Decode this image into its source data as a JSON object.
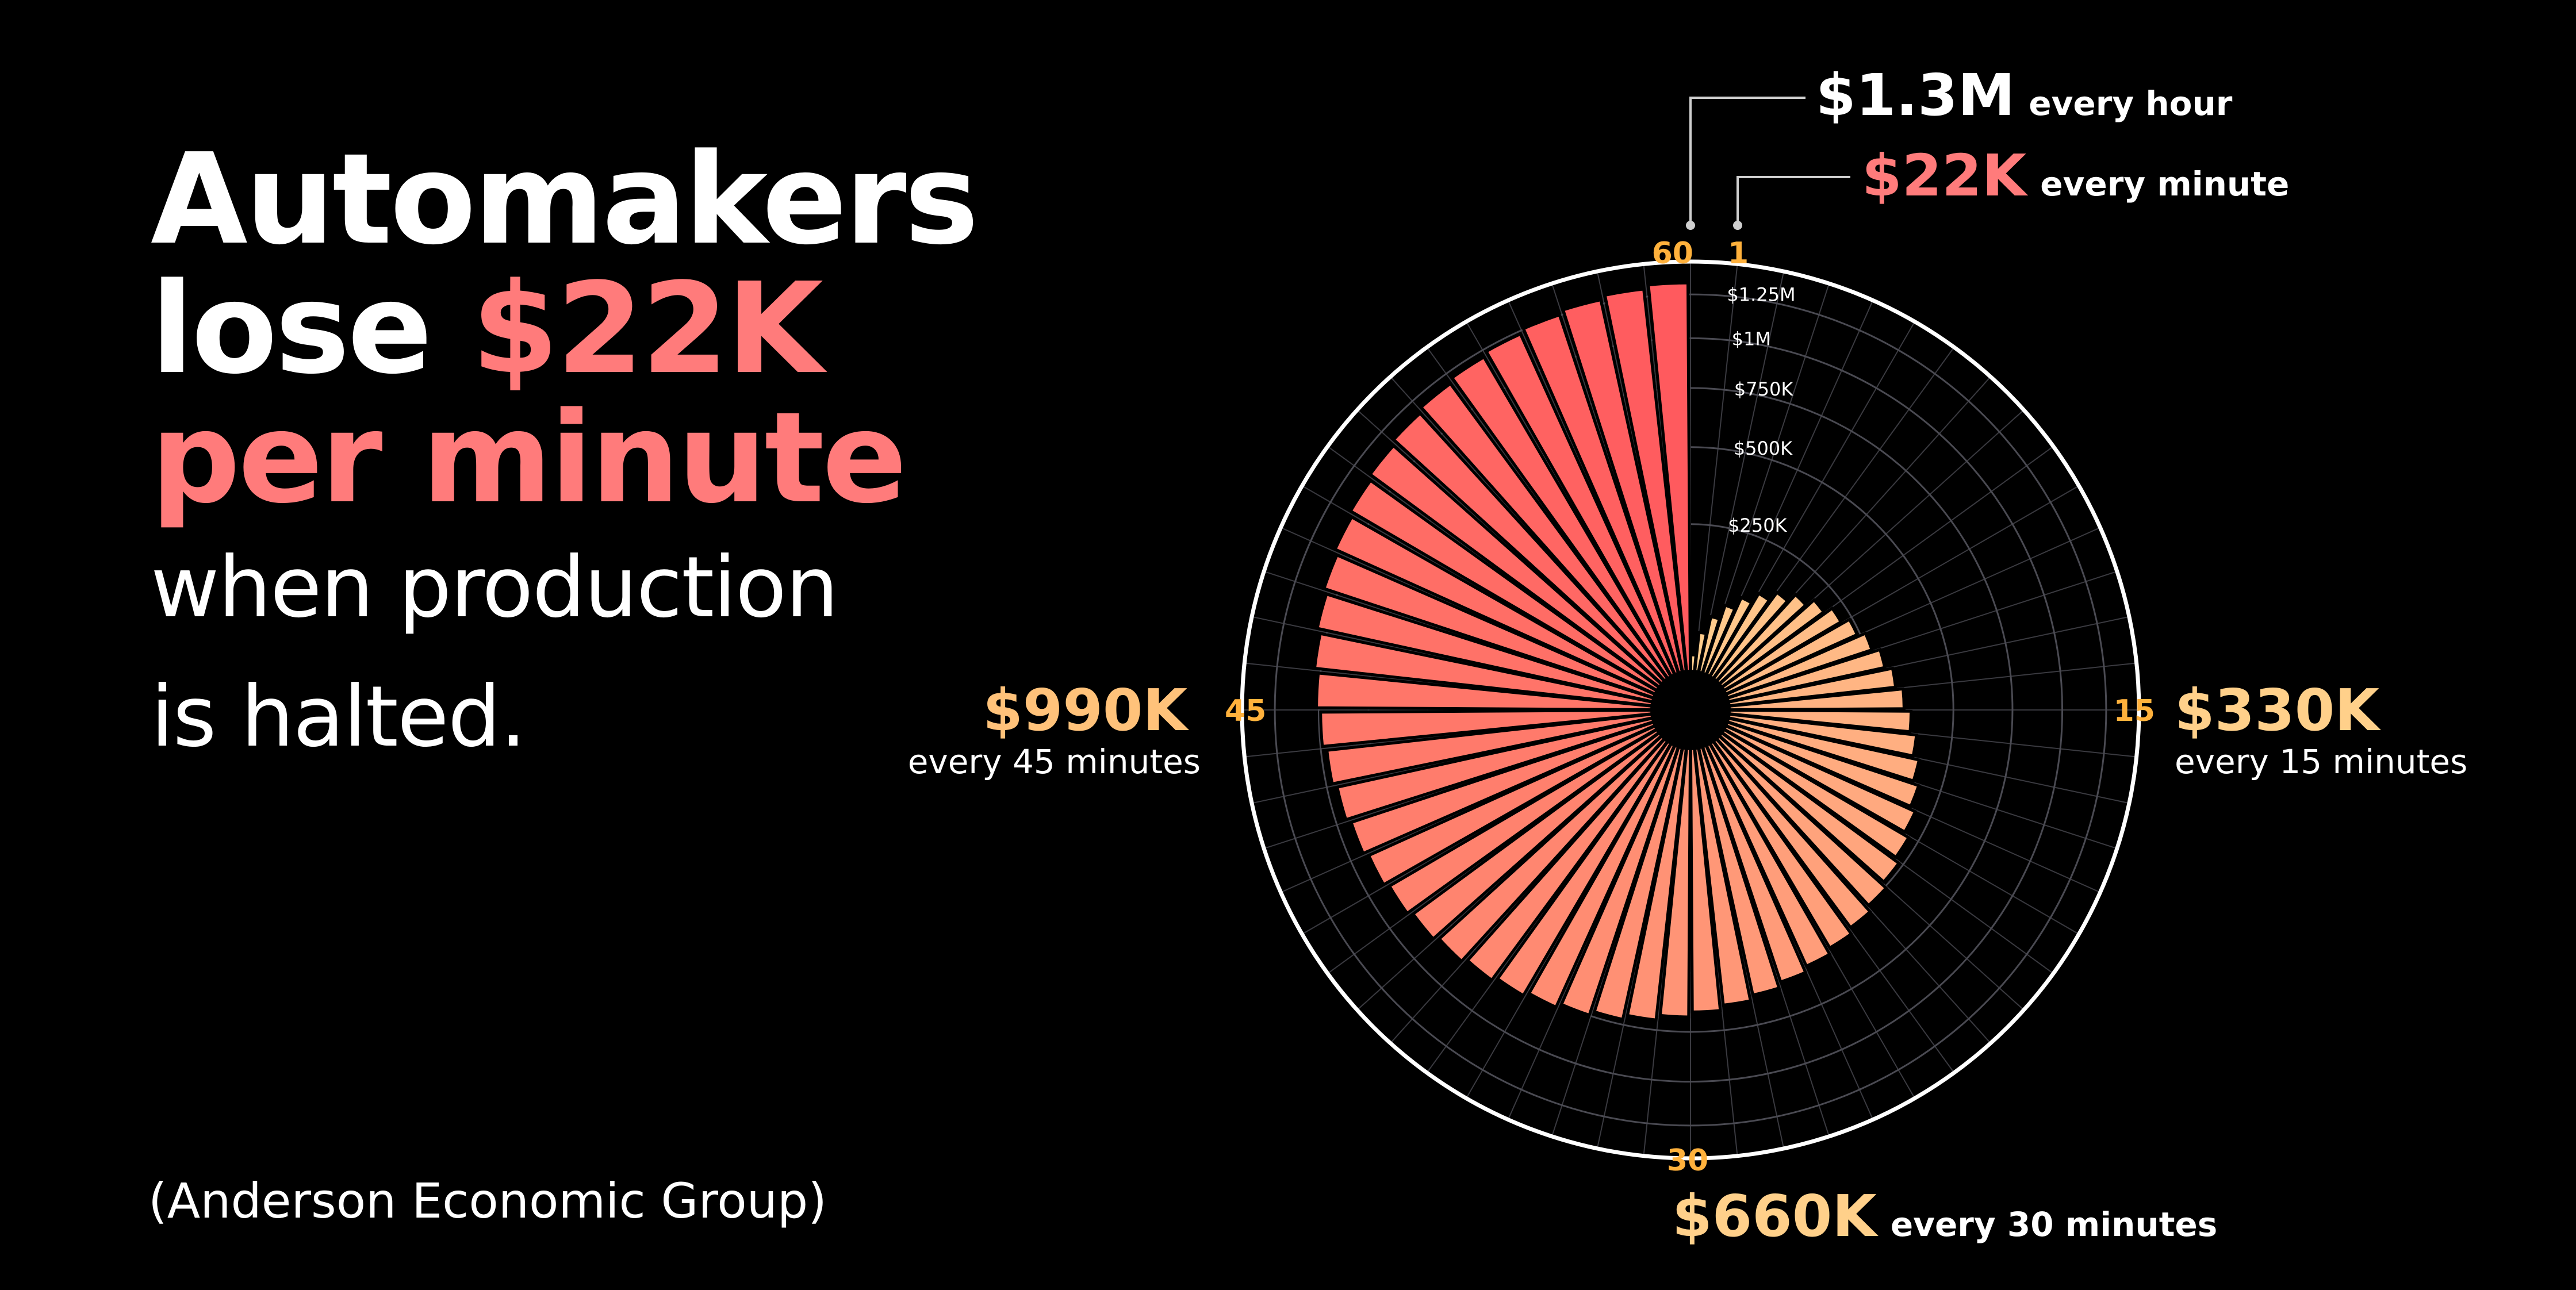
{
  "headline": {
    "line1": "Automakers",
    "line2_prefix": "lose ",
    "line2_accent": "$22K",
    "line3": "per minute",
    "line4": "when production",
    "line5": "is halted."
  },
  "source": "(Anderson Economic Group)",
  "colors": {
    "background": "#000000",
    "accent": "#ff7b7b",
    "gradient_start": "#ffcf8e",
    "gradient_end": "#ff5a5e",
    "marker": "#ffb13c",
    "grid": "#4a4a52"
  },
  "chart_data": {
    "type": "radial-bar",
    "minutes": [
      1,
      2,
      3,
      4,
      5,
      6,
      7,
      8,
      9,
      10,
      11,
      12,
      13,
      14,
      15,
      16,
      17,
      18,
      19,
      20,
      21,
      22,
      23,
      24,
      25,
      26,
      27,
      28,
      29,
      30,
      31,
      32,
      33,
      34,
      35,
      36,
      37,
      38,
      39,
      40,
      41,
      42,
      43,
      44,
      45,
      46,
      47,
      48,
      49,
      50,
      51,
      52,
      53,
      54,
      55,
      56,
      57,
      58,
      59,
      60
    ],
    "values": [
      22000,
      44000,
      66000,
      88000,
      110000,
      132000,
      154000,
      176000,
      198000,
      220000,
      242000,
      264000,
      286000,
      308000,
      330000,
      352000,
      374000,
      396000,
      418000,
      440000,
      462000,
      484000,
      506000,
      528000,
      550000,
      572000,
      594000,
      616000,
      638000,
      660000,
      682000,
      704000,
      726000,
      748000,
      770000,
      792000,
      814000,
      836000,
      858000,
      880000,
      902000,
      924000,
      946000,
      968000,
      990000,
      1012000,
      1034000,
      1056000,
      1078000,
      1100000,
      1122000,
      1144000,
      1166000,
      1188000,
      1210000,
      1232000,
      1254000,
      1276000,
      1298000,
      1320000
    ],
    "radial_ticks": [
      "$250K",
      "$500K",
      "$750K",
      "$1M",
      "$1.25M"
    ],
    "radial_tick_values": [
      250000,
      500000,
      750000,
      1000000,
      1250000
    ],
    "max_value": 1550000,
    "minute_markers": [
      {
        "minute": 60,
        "label": "60"
      },
      {
        "minute": 1,
        "label": "1"
      },
      {
        "minute": 15,
        "label": "15"
      },
      {
        "minute": 30,
        "label": "30"
      },
      {
        "minute": 45,
        "label": "45"
      }
    ],
    "annotations": [
      {
        "id": "hour",
        "value_label": "$1.3M",
        "text": "every hour",
        "color": "#ffffff"
      },
      {
        "id": "minute",
        "value_label": "$22K",
        "text": "every minute",
        "color": "#ff7b7b"
      },
      {
        "id": "q15",
        "value_label": "$330K",
        "text": "every 15 minutes",
        "color": "#ffd08a"
      },
      {
        "id": "q30",
        "value_label": "$660K",
        "text": "every 30 minutes",
        "color": "#ffd08a"
      },
      {
        "id": "q45",
        "value_label": "$990K",
        "text": "every 45 minutes",
        "color": "#ffc27a"
      }
    ]
  }
}
